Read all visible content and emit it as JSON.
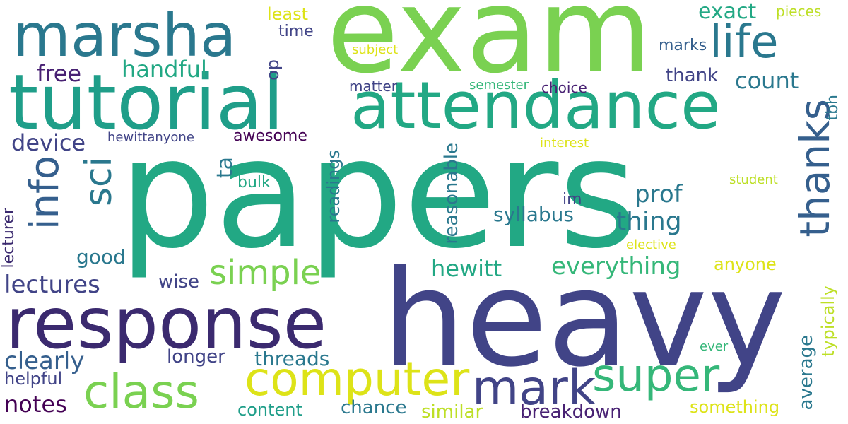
{
  "words": [
    {
      "text": "papers",
      "color": "#22a884"
    },
    {
      "text": "heavy",
      "color": "#414487"
    },
    {
      "text": "exam",
      "color": "#7ad151"
    },
    {
      "text": "response",
      "color": "#3b2a6f"
    },
    {
      "text": "attendance",
      "color": "#22a884"
    },
    {
      "text": "tutorial",
      "color": "#1f9e89"
    },
    {
      "text": "marsha",
      "color": "#2a788e"
    },
    {
      "text": "computer",
      "color": "#dde318"
    },
    {
      "text": "mark",
      "color": "#414487"
    },
    {
      "text": "class",
      "color": "#7ad151"
    },
    {
      "text": "super",
      "color": "#35b779"
    },
    {
      "text": "thanks",
      "color": "#355f8d"
    },
    {
      "text": "life",
      "color": "#2a788e"
    },
    {
      "text": "info",
      "color": "#355f8d"
    },
    {
      "text": "sci",
      "color": "#2a788e"
    },
    {
      "text": "simple",
      "color": "#7ad151"
    },
    {
      "text": "everything",
      "color": "#35b779"
    },
    {
      "text": "hewitt",
      "color": "#22a884"
    },
    {
      "text": "handful",
      "color": "#22a884"
    },
    {
      "text": "exact",
      "color": "#22a884"
    },
    {
      "text": "count",
      "color": "#2a788e"
    },
    {
      "text": "prof",
      "color": "#2a788e"
    },
    {
      "text": "thing",
      "color": "#2a788e"
    },
    {
      "text": "syllabus",
      "color": "#2a788e"
    },
    {
      "text": "lectures",
      "color": "#414487"
    },
    {
      "text": "clearly",
      "color": "#355f8d"
    },
    {
      "text": "notes",
      "color": "#440154"
    },
    {
      "text": "device",
      "color": "#414487"
    },
    {
      "text": "free",
      "color": "#482173"
    },
    {
      "text": "threads",
      "color": "#2a788e"
    },
    {
      "text": "chance",
      "color": "#2a788e"
    },
    {
      "text": "breakdown",
      "color": "#482173"
    },
    {
      "text": "content",
      "color": "#1f9e89"
    },
    {
      "text": "similar",
      "color": "#bddf26"
    },
    {
      "text": "something",
      "color": "#dde318"
    },
    {
      "text": "anyone",
      "color": "#dde318"
    },
    {
      "text": "average",
      "color": "#2a788e"
    },
    {
      "text": "typically",
      "color": "#bddf26"
    },
    {
      "text": "longer",
      "color": "#414487"
    },
    {
      "text": "helpful",
      "color": "#414487"
    },
    {
      "text": "good",
      "color": "#2a788e"
    },
    {
      "text": "wise",
      "color": "#414487"
    },
    {
      "text": "lecturer",
      "color": "#3b2a6f"
    },
    {
      "text": "readings",
      "color": "#2a788e"
    },
    {
      "text": "reasonable",
      "color": "#2a788e"
    },
    {
      "text": "ta",
      "color": "#2a788e"
    },
    {
      "text": "awesome",
      "color": "#440154"
    },
    {
      "text": "hewittanyone",
      "color": "#414487"
    },
    {
      "text": "bulk",
      "color": "#22a884"
    },
    {
      "text": "im",
      "color": "#414487"
    },
    {
      "text": "tbh",
      "color": "#2a788e"
    },
    {
      "text": "least",
      "color": "#dde318"
    },
    {
      "text": "time",
      "color": "#414487"
    },
    {
      "text": "pieces",
      "color": "#bddf26"
    },
    {
      "text": "subject",
      "color": "#dde318"
    },
    {
      "text": "marks",
      "color": "#355f8d"
    },
    {
      "text": "thank",
      "color": "#414487"
    },
    {
      "text": "op",
      "color": "#414487"
    },
    {
      "text": "matter",
      "color": "#414487"
    },
    {
      "text": "semester",
      "color": "#35b779"
    },
    {
      "text": "choice",
      "color": "#482173"
    },
    {
      "text": "interest",
      "color": "#dde318"
    },
    {
      "text": "student",
      "color": "#bddf26"
    },
    {
      "text": "elective",
      "color": "#dde318"
    },
    {
      "text": "ever",
      "color": "#35b779"
    }
  ]
}
